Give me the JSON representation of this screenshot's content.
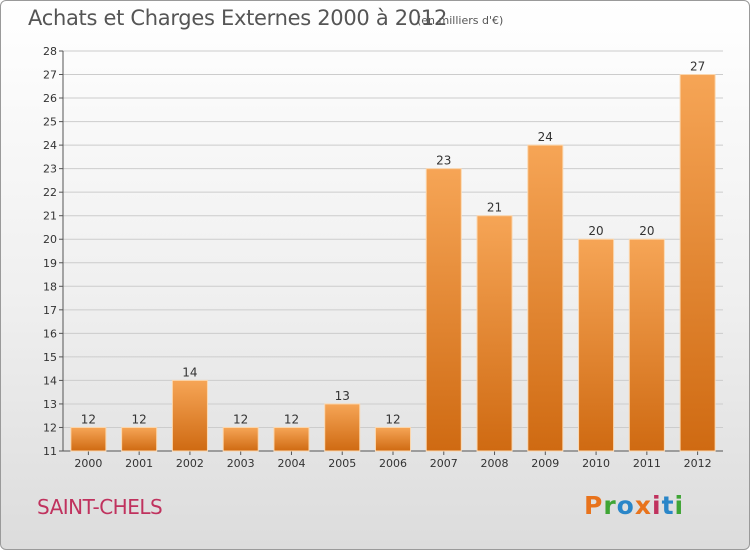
{
  "header": {
    "title": "Achats et Charges Externes 2000 à 2012",
    "unit": "(en milliers d'€)"
  },
  "footer": {
    "city": "SAINT-CHELS",
    "logo_text": "Proxiti",
    "logo_colors": [
      "#e8731c",
      "#3fa535",
      "#2a86c8",
      "#e8731c",
      "#c0325e",
      "#2a86c8",
      "#3fa535"
    ]
  },
  "colors": {
    "bar_top": "#f6a556",
    "bar_bottom": "#cf6a12",
    "grid": "#cccccc",
    "axis_text": "#333333"
  },
  "chart_data": {
    "type": "bar",
    "title": "Achats et Charges Externes 2000 à 2012",
    "categories": [
      "2000",
      "2001",
      "2002",
      "2003",
      "2004",
      "2005",
      "2006",
      "2007",
      "2008",
      "2009",
      "2010",
      "2011",
      "2012"
    ],
    "values": [
      12,
      12,
      14,
      12,
      12,
      13,
      12,
      23,
      21,
      24,
      20,
      20,
      27
    ],
    "data_labels": [
      "12",
      "12",
      "14",
      "12",
      "12",
      "13",
      "12",
      "23",
      "21",
      "24",
      "20",
      "20",
      "27"
    ],
    "ylim": [
      11,
      28
    ],
    "yticks": [
      "11",
      "12",
      "13",
      "14",
      "15",
      "16",
      "17",
      "18",
      "19",
      "20",
      "21",
      "22",
      "23",
      "24",
      "25",
      "26",
      "27",
      "28"
    ],
    "grid": true,
    "legend": "none"
  }
}
